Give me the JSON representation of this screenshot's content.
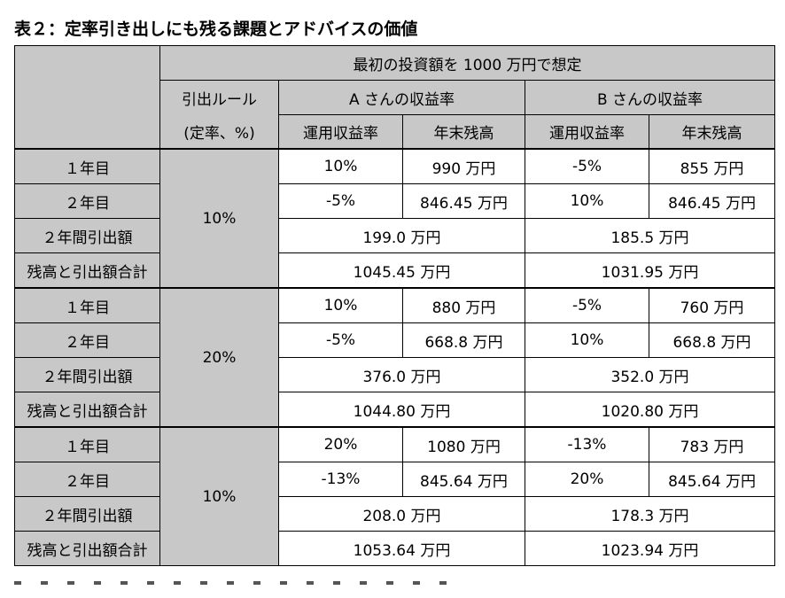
{
  "title": "表２：定率引き出しにも残る課題とアドバイスの価値",
  "header": {
    "initial_investment": "最初の投資額を 1000 万円で想定",
    "rule_label_line1": "引出ルール",
    "rule_label_line2": "(定率、%)",
    "a_title": "A さんの収益率",
    "b_title": "B さんの収益率",
    "return_label": "運用収益率",
    "balance_label": "年末残高"
  },
  "row_labels": {
    "year1": "１年目",
    "year2": "２年目",
    "withdrawn": "２年間引出額",
    "total": "残高と引出額合計"
  },
  "blocks": [
    {
      "rate": "10%",
      "year1": {
        "a_return": "10%",
        "a_balance": "990 万円",
        "b_return": "-5%",
        "b_balance": "855 万円"
      },
      "year2": {
        "a_return": "-5%",
        "a_balance": "846.45 万円",
        "b_return": "10%",
        "b_balance": "846.45 万円"
      },
      "withdrawn": {
        "a": "199.0 万円",
        "b": "185.5 万円"
      },
      "total": {
        "a": "1045.45 万円",
        "b": "1031.95 万円"
      }
    },
    {
      "rate": "20%",
      "year1": {
        "a_return": "10%",
        "a_balance": "880 万円",
        "b_return": "-5%",
        "b_balance": "760 万円"
      },
      "year2": {
        "a_return": "-5%",
        "a_balance": "668.8 万円",
        "b_return": "10%",
        "b_balance": "668.8 万円"
      },
      "withdrawn": {
        "a": "376.0 万円",
        "b": "352.0 万円"
      },
      "total": {
        "a": "1044.80 万円",
        "b": "1020.80 万円"
      }
    },
    {
      "rate": "10%",
      "year1": {
        "a_return": "20%",
        "a_balance": "1080 万円",
        "b_return": "-13%",
        "b_balance": "783 万円"
      },
      "year2": {
        "a_return": "-13%",
        "a_balance": "845.64 万円",
        "b_return": "20%",
        "b_balance": "845.64 万円"
      },
      "withdrawn": {
        "a": "208.0 万円",
        "b": "178.3 万円"
      },
      "total": {
        "a": "1053.64 万円",
        "b": "1023.94 万円"
      }
    }
  ],
  "colors": {
    "header_gray": "#c8c8c8",
    "border": "#000000"
  }
}
